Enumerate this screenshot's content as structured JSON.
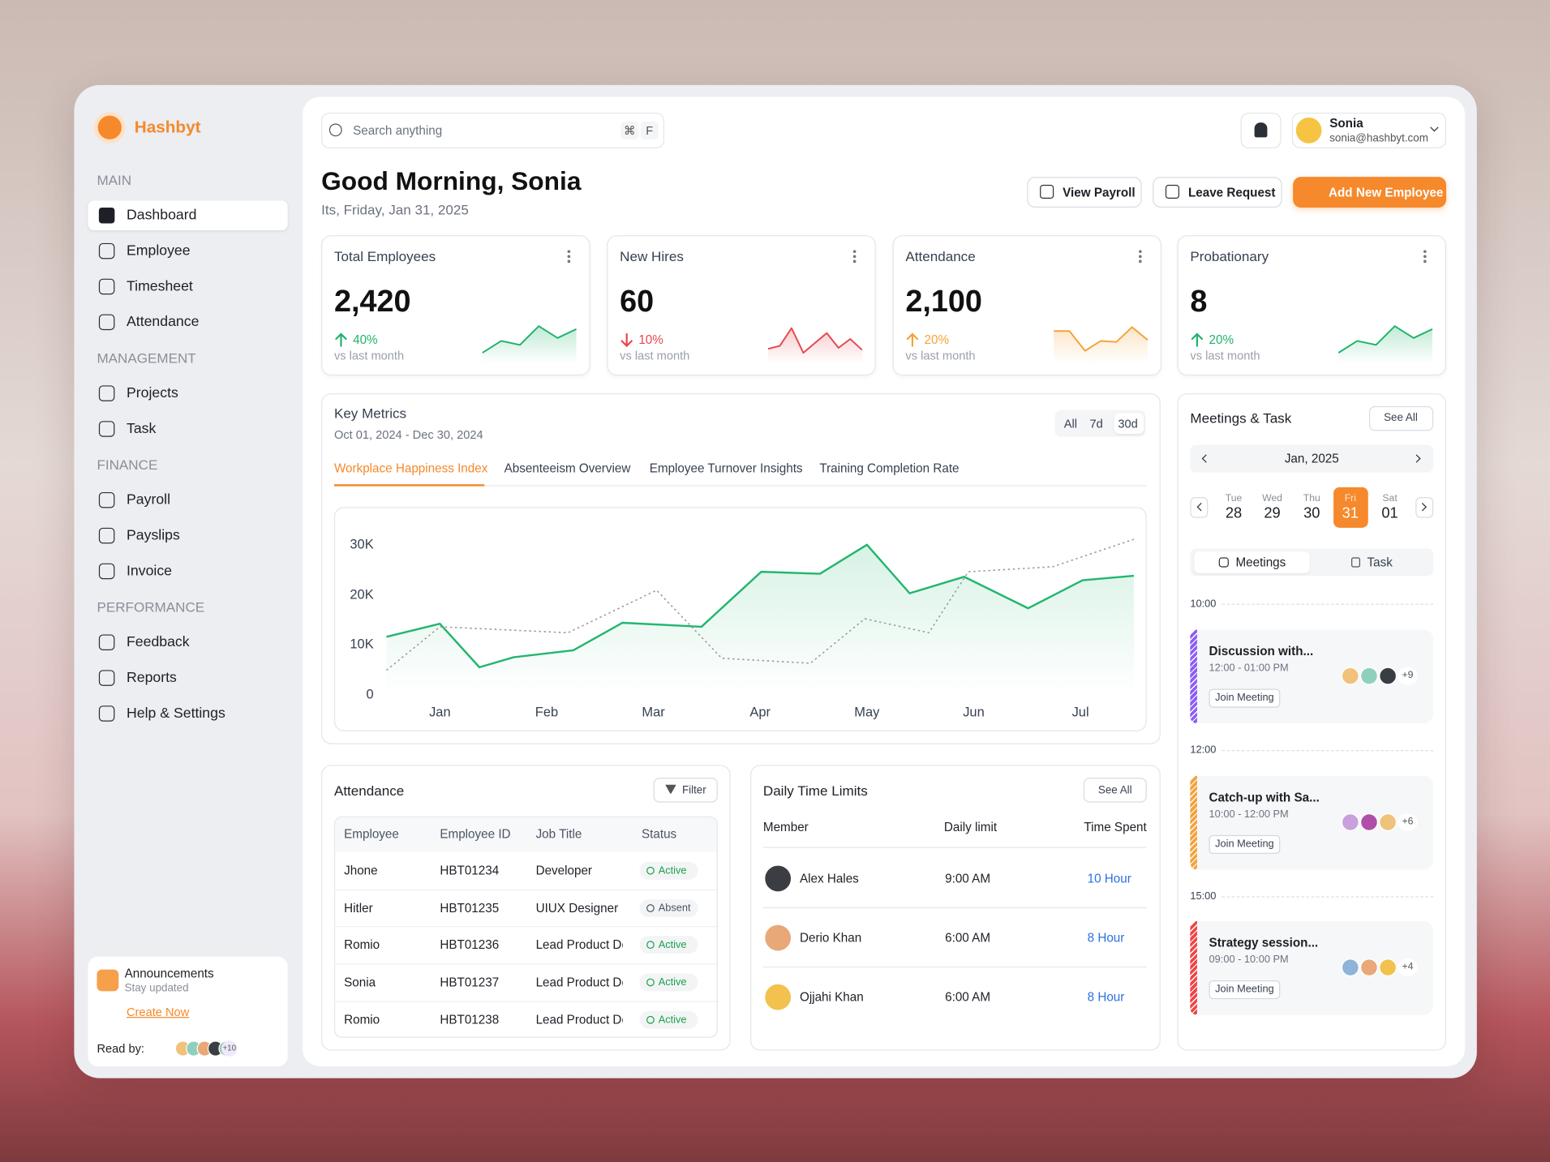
{
  "brand": "Hashbyt",
  "sidebar": {
    "sections": [
      {
        "title": "MAIN",
        "items": [
          "Dashboard",
          "Employee",
          "Timesheet",
          "Attendance"
        ]
      },
      {
        "title": "MANAGEMENT",
        "items": [
          "Projects",
          "Task"
        ]
      },
      {
        "title": "FINANCE",
        "items": [
          "Payroll",
          "Payslips",
          "Invoice"
        ]
      },
      {
        "title": "PERFORMANCE",
        "items": [
          "Feedback",
          "Reports",
          "Help & Settings"
        ]
      }
    ],
    "announcement": {
      "title": "Announcements",
      "subtitle": "Stay updated",
      "link": "Create Now",
      "read_by": "Read by:",
      "avatars": [
        "#f0c27b",
        "#8fd0bd",
        "#e7a978",
        "#3a3d42",
        "#9cc9b4"
      ],
      "extra": "+10"
    }
  },
  "search": {
    "placeholder": "Search anything",
    "shortcut": [
      "⌘",
      "F"
    ]
  },
  "user": {
    "name": "Sonia",
    "email": "sonia@hashbyt.com"
  },
  "greeting": {
    "title": "Good Morning, Sonia",
    "date": "Its, Friday, Jan 31, 2025"
  },
  "actions": [
    "View Payroll",
    "Leave Request",
    "Add New Employee"
  ],
  "stats": [
    {
      "label": "Total Employees",
      "value": "2,420",
      "change": "40%",
      "trend": "up",
      "note": "vs last month",
      "color": "#1fb36b",
      "spark": [
        11,
        23,
        19,
        38,
        26,
        35
      ]
    },
    {
      "label": "New Hires",
      "value": "60",
      "change": "10%",
      "trend": "down",
      "note": "vs last month",
      "color": "#e5484d",
      "spark": [
        15,
        18,
        36,
        11,
        21,
        31,
        16,
        25,
        14
      ]
    },
    {
      "label": "Attendance",
      "value": "2,100",
      "change": "20%",
      "trend": "up",
      "note": "vs last month",
      "color": "#f4a23a",
      "spark": [
        33,
        33,
        13,
        23,
        22,
        37,
        24
      ]
    },
    {
      "label": "Probationary",
      "value": "8",
      "change": "20%",
      "trend": "up",
      "note": "vs last month",
      "color": "#1fb36b",
      "spark": [
        11,
        23,
        19,
        38,
        26,
        35
      ]
    }
  ],
  "key_metrics": {
    "title": "Key Metrics",
    "range": "Oct 01, 2024 - Dec 30, 2024",
    "filters": [
      "All",
      "7d",
      "30d"
    ],
    "tabs": [
      "Workplace Happiness Index",
      "Absenteeism Overview",
      "Employee Turnover Insights",
      "Training Completion Rate"
    ],
    "chart": {
      "type": "line",
      "xlim": [
        -0.5,
        6.5
      ],
      "xticks": [
        {
          "value": 0,
          "label": "Jan"
        },
        {
          "value": 1,
          "label": "Feb"
        },
        {
          "value": 2,
          "label": "Mar"
        },
        {
          "value": 3,
          "label": "Apr"
        },
        {
          "value": 4,
          "label": "May"
        },
        {
          "value": 5,
          "label": "Jun"
        },
        {
          "value": 6,
          "label": "Jul"
        }
      ],
      "ylim": [
        0,
        34000
      ],
      "yticks": [
        0,
        {
          "value": 10000,
          "label": "10K"
        },
        {
          "value": 20000,
          "label": "20K"
        },
        {
          "value": 30000,
          "label": "30K"
        }
      ],
      "grid": false,
      "series": [
        {
          "color": "#22b66e",
          "dashed": false,
          "area": true,
          "x": [
            -0.5,
            0,
            0.37,
            0.69,
            1.25,
            1.71,
            2.45,
            3.01,
            3.56,
            4.0,
            4.4,
            4.91,
            5.51,
            6.02,
            6.5
          ],
          "values": [
            11600,
            14200,
            5500,
            7500,
            8900,
            14400,
            13600,
            24600,
            24200,
            30000,
            20300,
            23600,
            17300,
            22900,
            23800
          ]
        },
        {
          "color": "#9a9a9a",
          "dashed": true,
          "area": false,
          "x": [
            -0.5,
            0,
            1.2,
            2.03,
            2.64,
            3.47,
            3.98,
            4.58,
            4.95,
            5.74,
            6.5
          ],
          "values": [
            4900,
            13600,
            12400,
            20900,
            7300,
            6300,
            15200,
            12400,
            24600,
            25600,
            31100
          ]
        }
      ]
    }
  },
  "attendance": {
    "title": "Attendance",
    "filter": "Filter",
    "headers": [
      "Employee",
      "Employee ID",
      "Job Title",
      "Status"
    ],
    "rows": [
      {
        "employee": "Jhone",
        "employee_id": "HBT01234",
        "job_title": "Developer",
        "status": "Active",
        "status_color": "#17a34a"
      },
      {
        "employee": "Hitler",
        "employee_id": "HBT01235",
        "job_title": "UIUX Designer",
        "status": "Absent",
        "status_color": "#4b5563"
      },
      {
        "employee": "Romio",
        "employee_id": "HBT01236",
        "job_title": "Lead Product De",
        "status": "Active",
        "status_color": "#17a34a"
      },
      {
        "employee": "Sonia",
        "employee_id": "HBT01237",
        "job_title": "Lead Product De",
        "status": "Active",
        "status_color": "#17a34a"
      },
      {
        "employee": "Romio",
        "employee_id": "HBT01238",
        "job_title": "Lead Product De",
        "status": "Active",
        "status_color": "#17a34a"
      }
    ]
  },
  "daily_limits": {
    "title": "Daily Time Limits",
    "see_all": "See All",
    "headers": [
      "Member",
      "Daily limit",
      "Time Spent"
    ],
    "rows": [
      {
        "member": "Alex Hales",
        "limit": "9:00 AM",
        "spent": "10 Hour",
        "avatar": "#3a3d42"
      },
      {
        "member": "Derio Khan",
        "limit": "6:00 AM",
        "spent": "8 Hour",
        "avatar": "#e9a877"
      },
      {
        "member": "Ojjahi Khan",
        "limit": "6:00 AM",
        "spent": "8 Hour",
        "avatar": "#f2c14e"
      }
    ]
  },
  "meetings": {
    "title": "Meetings & Task",
    "see_all": "See All",
    "month": "Jan, 2025",
    "days": [
      {
        "dow": "Tue",
        "day": "28"
      },
      {
        "dow": "Wed",
        "day": "29"
      },
      {
        "dow": "Thu",
        "day": "30"
      },
      {
        "dow": "Fri",
        "day": "31"
      },
      {
        "dow": "Sat",
        "day": "01"
      }
    ],
    "tabs": [
      "Meetings",
      "Task"
    ],
    "times": [
      "10:00",
      "12:00",
      "15:00"
    ],
    "items": [
      {
        "title": "Discussion with...",
        "time": "12:00 - 01:00 PM",
        "button": "Join Meeting",
        "extra": "+9",
        "color": "#8b5cf6",
        "avatars": [
          "#f0c27b",
          "#8fd0bd",
          "#3a3d42"
        ]
      },
      {
        "title": "Catch-up with Sa...",
        "time": "10:00 - 12:00 PM",
        "button": "Join Meeting",
        "extra": "+6",
        "color": "#f4a23a",
        "avatars": [
          "#c9a0dc",
          "#b04fa8",
          "#f0c27b"
        ]
      },
      {
        "title": "Strategy session...",
        "time": "09:00 - 10:00 PM",
        "button": "Join Meeting",
        "extra": "+4",
        "color": "#ef4444",
        "avatars": [
          "#8fb3d9",
          "#e9a877",
          "#f2c14e"
        ]
      }
    ]
  }
}
